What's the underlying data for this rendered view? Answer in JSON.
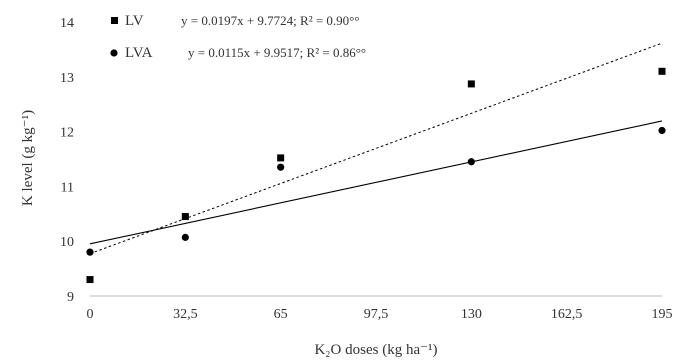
{
  "chart_data": {
    "type": "scatter",
    "title": "",
    "xlabel": "K₂O doses (kg ha⁻¹)",
    "ylabel": "K level (g kg⁻¹)",
    "xlim": [
      0,
      195
    ],
    "ylim": [
      9,
      14
    ],
    "x_ticks": [
      "0",
      "32,5",
      "65",
      "97,5",
      "130",
      "162,5",
      "195"
    ],
    "y_ticks": [
      "9",
      "10",
      "11",
      "12",
      "13",
      "14"
    ],
    "legend_position": "top-left",
    "grid": false,
    "series": [
      {
        "name": "LV",
        "marker": "square",
        "line_style": "dotted",
        "color": "#000000",
        "x": [
          0,
          32.5,
          65,
          130,
          195
        ],
        "y": [
          9.3,
          10.45,
          11.52,
          12.87,
          13.1
        ],
        "equation": "y = 0.0197x + 9.7724;  R² = 0.90°°",
        "slope": 0.0197,
        "intercept": 9.7724
      },
      {
        "name": "LVA",
        "marker": "circle",
        "line_style": "solid",
        "color": "#000000",
        "x": [
          0,
          32.5,
          65,
          130,
          195
        ],
        "y": [
          9.8,
          10.07,
          11.35,
          11.45,
          12.02
        ],
        "equation": "y = 0.0115x + 9.9517;  R² = 0.86°°",
        "slope": 0.0115,
        "intercept": 9.9517
      }
    ]
  }
}
